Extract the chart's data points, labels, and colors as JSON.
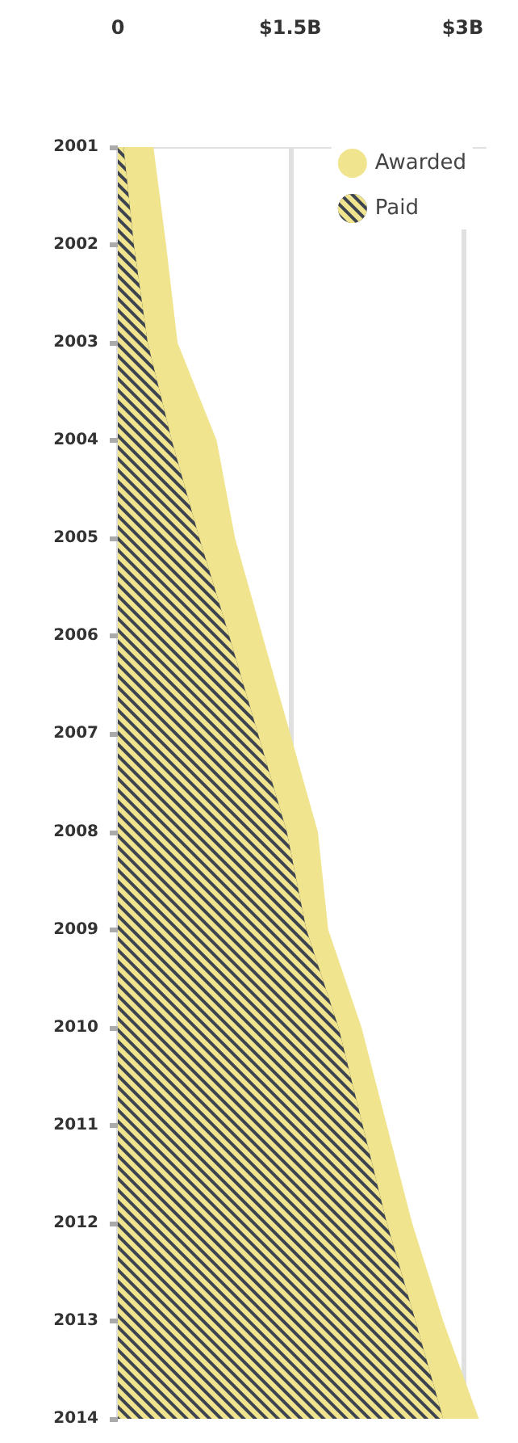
{
  "chart_data": {
    "type": "area",
    "orientation": "horizontal",
    "categories": [
      "2001",
      "2002",
      "2003",
      "2004",
      "2005",
      "2006",
      "2007",
      "2008",
      "2009",
      "2010",
      "2011",
      "2012",
      "2013",
      "2014"
    ],
    "series": [
      {
        "name": "Awarded",
        "color": "#f0e48e",
        "values": [
          0.31,
          0.42,
          0.52,
          0.86,
          1.02,
          1.26,
          1.5,
          1.74,
          1.83,
          2.12,
          2.34,
          2.56,
          2.83,
          3.14
        ]
      },
      {
        "name": "Paid",
        "color": "#3d4450",
        "values": [
          0.05,
          0.14,
          0.26,
          0.47,
          0.71,
          0.97,
          1.22,
          1.47,
          1.64,
          1.92,
          2.13,
          2.34,
          2.59,
          2.83
        ]
      }
    ],
    "xlim": [
      0,
      3.2
    ],
    "xticks": [
      0,
      {
        "value": 1.5,
        "label": "$1.5B"
      },
      {
        "value": 3,
        "label": "$3B"
      }
    ],
    "grid": "x",
    "legend": "top right"
  }
}
